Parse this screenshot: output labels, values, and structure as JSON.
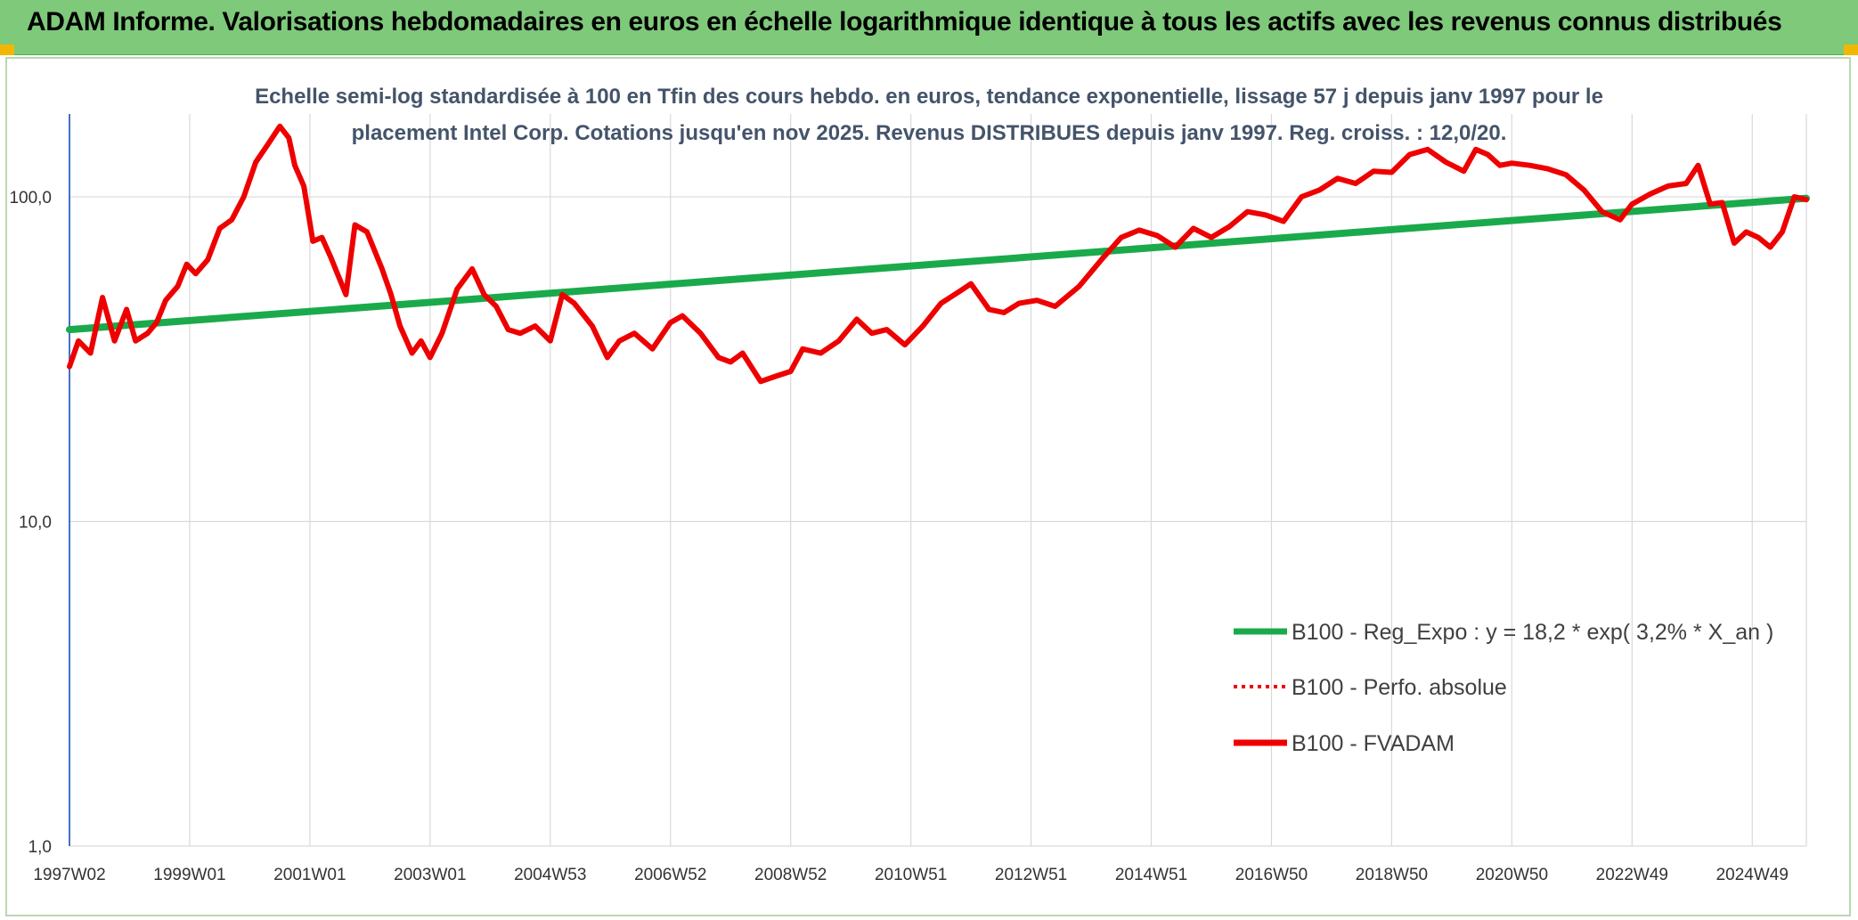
{
  "banner": {
    "title": "ADAM Informe. Valorisations hebdomadaires en euros en échelle logarithmique identique à tous les actifs avec les revenus connus distribués"
  },
  "colors": {
    "banner_bg": "#7ec97a",
    "corner_accent": "#f2b705",
    "trend_green": "#1aaa4b",
    "fvadam_red": "#ee0000",
    "title_text": "#44546a",
    "grid": "#d9d9d9"
  },
  "chart_data": {
    "type": "line",
    "title_line1": "Echelle semi-log standardisée à 100 en Tfin des cours hebdo. en euros, tendance exponentielle, lissage 57 j depuis janv 1997 pour le",
    "title_line2": "placement Intel Corp. Cotations jusqu'en nov 2025. Revenus DISTRIBUES depuis janv 1997. Reg. croiss. : 12,0/20.",
    "y_scale": "log",
    "ylim": [
      1,
      180
    ],
    "y_ticks": [
      {
        "value": 1,
        "label": "1,0"
      },
      {
        "value": 10,
        "label": "10,0"
      },
      {
        "value": 100,
        "label": "100,0"
      }
    ],
    "xlim": [
      1997.0,
      2025.9
    ],
    "x_ticks": [
      {
        "value": 1997.0,
        "label": "1997W02"
      },
      {
        "value": 1999.0,
        "label": "1999W01"
      },
      {
        "value": 2001.0,
        "label": "2001W01"
      },
      {
        "value": 2003.0,
        "label": "2003W01"
      },
      {
        "value": 2005.0,
        "label": "2004W53"
      },
      {
        "value": 2007.0,
        "label": "2006W52"
      },
      {
        "value": 2009.0,
        "label": "2008W52"
      },
      {
        "value": 2011.0,
        "label": "2010W51"
      },
      {
        "value": 2013.0,
        "label": "2012W51"
      },
      {
        "value": 2015.0,
        "label": "2014W51"
      },
      {
        "value": 2017.0,
        "label": "2016W50"
      },
      {
        "value": 2019.0,
        "label": "2018W50"
      },
      {
        "value": 2021.0,
        "label": "2020W50"
      },
      {
        "value": 2023.0,
        "label": "2022W49"
      },
      {
        "value": 2025.0,
        "label": "2024W49"
      }
    ],
    "grid": true,
    "legend_position": "lower-right",
    "series": [
      {
        "name": "B100 - Reg_Expo : y = 18,2 * exp( 3,2% *  X_an )",
        "style": "solid",
        "color": "#1aaa4b",
        "x": [
          1997.0,
          2025.9
        ],
        "y": [
          39,
          99
        ]
      },
      {
        "name": "B100 - Perfo. absolue",
        "style": "dotted",
        "color": "#ee0000",
        "x": [],
        "y": []
      },
      {
        "name": "B100 - FVADAM",
        "style": "solid",
        "color": "#ee0000",
        "x": [
          1997.0,
          1997.15,
          1997.35,
          1997.55,
          1997.75,
          1997.95,
          1998.1,
          1998.3,
          1998.45,
          1998.6,
          1998.8,
          1998.95,
          1999.1,
          1999.3,
          1999.5,
          1999.7,
          1999.9,
          2000.1,
          2000.3,
          2000.5,
          2000.65,
          2000.75,
          2000.9,
          2001.05,
          2001.2,
          2001.35,
          2001.6,
          2001.75,
          2001.95,
          2002.2,
          2002.35,
          2002.5,
          2002.7,
          2002.85,
          2003.0,
          2003.2,
          2003.45,
          2003.7,
          2003.9,
          2004.1,
          2004.3,
          2004.5,
          2004.75,
          2005.0,
          2005.2,
          2005.4,
          2005.7,
          2005.95,
          2006.15,
          2006.4,
          2006.7,
          2007.0,
          2007.2,
          2007.5,
          2007.8,
          2008.0,
          2008.2,
          2008.5,
          2008.75,
          2009.0,
          2009.2,
          2009.5,
          2009.8,
          2010.1,
          2010.35,
          2010.6,
          2010.9,
          2011.2,
          2011.5,
          2011.8,
          2012.0,
          2012.3,
          2012.55,
          2012.8,
          2013.1,
          2013.4,
          2013.8,
          2014.2,
          2014.5,
          2014.8,
          2015.1,
          2015.4,
          2015.7,
          2016.0,
          2016.3,
          2016.6,
          2016.9,
          2017.2,
          2017.5,
          2017.8,
          2018.1,
          2018.4,
          2018.7,
          2019.0,
          2019.3,
          2019.6,
          2019.9,
          2020.2,
          2020.4,
          2020.6,
          2020.8,
          2021.0,
          2021.3,
          2021.6,
          2021.9,
          2022.2,
          2022.5,
          2022.8,
          2023.0,
          2023.3,
          2023.6,
          2023.9,
          2024.1,
          2024.3,
          2024.5,
          2024.7,
          2024.9,
          2025.1,
          2025.3,
          2025.5,
          2025.7,
          2025.9
        ],
        "y": [
          30,
          36,
          33,
          49,
          36,
          45,
          36,
          38,
          41,
          48,
          53,
          62,
          58,
          64,
          80,
          85,
          100,
          128,
          145,
          165,
          152,
          125,
          108,
          73,
          75,
          65,
          50,
          82,
          78,
          60,
          50,
          40,
          33,
          36,
          32,
          38,
          52,
          60,
          50,
          46,
          39,
          38,
          40,
          36,
          50,
          47,
          40,
          32,
          36,
          38,
          34,
          41,
          43,
          38,
          32,
          31,
          33,
          27,
          28,
          29,
          34,
          33,
          36,
          42,
          38,
          39,
          35,
          40,
          47,
          51,
          54,
          45,
          44,
          47,
          48,
          46,
          53,
          65,
          75,
          79,
          76,
          70,
          80,
          75,
          81,
          90,
          88,
          84,
          100,
          105,
          114,
          110,
          120,
          119,
          135,
          140,
          128,
          120,
          140,
          135,
          125,
          127,
          125,
          122,
          117,
          105,
          90,
          85,
          95,
          102,
          108,
          110,
          125,
          95,
          96,
          72,
          78,
          75,
          70,
          78,
          100,
          98
        ]
      }
    ]
  }
}
